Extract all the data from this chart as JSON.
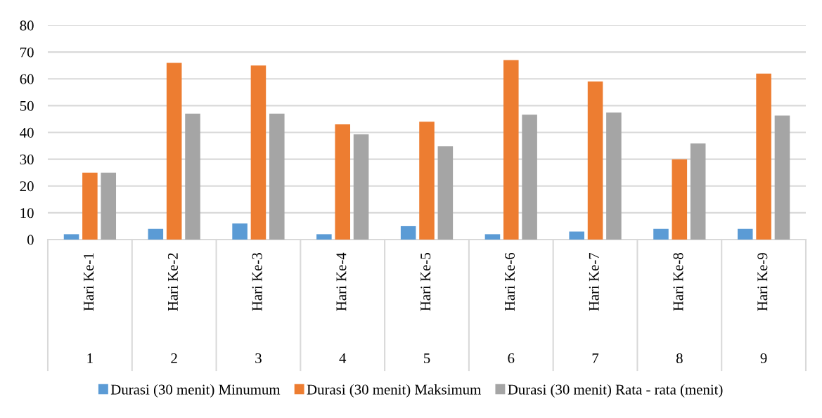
{
  "chart_data": {
    "type": "bar",
    "categories": [
      "Hari Ke-1",
      "Hari Ke-2",
      "Hari Ke-3",
      "Hari Ke-4",
      "Hari Ke-5",
      "Hari Ke-6",
      "Hari Ke-7",
      "Hari Ke-8",
      "Hari Ke-9"
    ],
    "annotations": [
      "1",
      "2",
      "3",
      "4",
      "5",
      "6",
      "7",
      "8",
      "9"
    ],
    "series": [
      {
        "name": "Durasi (30 menit) Minumum",
        "color": "#5b9bd5",
        "values": [
          2,
          4,
          6,
          2,
          5,
          2,
          3,
          4,
          4
        ]
      },
      {
        "name": "Durasi (30 menit) Maksimum",
        "color": "#ed7d31",
        "values": [
          25,
          66,
          65,
          43,
          44,
          67,
          59,
          30,
          62
        ]
      },
      {
        "name": "Durasi (30 menit) Rata - rata (menit)",
        "color": "#a5a5a5",
        "values": [
          25,
          47,
          47,
          39.3,
          34.8,
          46.6,
          47.4,
          35.9,
          46.3
        ]
      }
    ],
    "ylim": [
      0,
      80
    ],
    "yticks": [
      0,
      10,
      20,
      30,
      40,
      50,
      60,
      70,
      80
    ],
    "grid": "y",
    "legend": "bottom"
  }
}
